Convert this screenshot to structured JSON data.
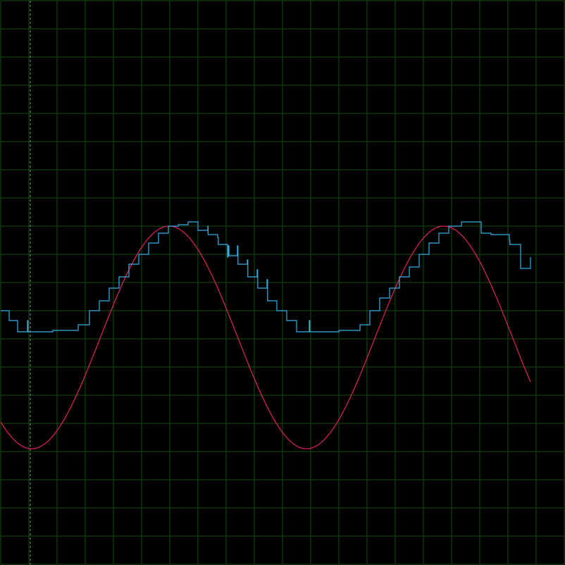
{
  "colors": {
    "background": "#000000",
    "grid": "#1d4a1d",
    "cursor": "#9a9a9a",
    "analog_signal": "#e0245e",
    "sampled_signal": "#3ab0e8"
  },
  "chart_data": {
    "type": "line",
    "title": "",
    "xlabel": "",
    "ylabel": "",
    "grid": true,
    "grid_divisions": {
      "x": 20,
      "y": 20
    },
    "xlim": [
      0,
      20
    ],
    "ylim": [
      -10,
      10
    ],
    "cursor_x": 1.05,
    "series": [
      {
        "role": "analog",
        "style": "smooth",
        "wave": {
          "offset": -1.95,
          "amplitude": 3.95,
          "period": 9.75,
          "phase_x": 1.1,
          "x_start": 0,
          "x_end": 18.8
        }
      },
      {
        "role": "sampled",
        "style": "step",
        "points": [
          [
            0,
            -1.0
          ],
          [
            0.3,
            -1.0
          ],
          [
            0.3,
            -1.35
          ],
          [
            0.6,
            -1.35
          ],
          [
            0.6,
            -1.75
          ],
          [
            0.95,
            -1.75
          ],
          [
            0.95,
            -1.35
          ],
          [
            0.97,
            -1.35
          ],
          [
            0.97,
            -1.75
          ],
          [
            1.85,
            -1.75
          ],
          [
            1.85,
            -1.7
          ],
          [
            2.75,
            -1.7
          ],
          [
            2.75,
            -1.5
          ],
          [
            3.15,
            -1.5
          ],
          [
            3.15,
            -1.35
          ],
          [
            3.15,
            -1.0
          ],
          [
            3.5,
            -1.0
          ],
          [
            3.5,
            -0.65
          ],
          [
            3.85,
            -0.65
          ],
          [
            3.85,
            -0.2
          ],
          [
            4.2,
            -0.2
          ],
          [
            4.2,
            0.2
          ],
          [
            4.55,
            0.2
          ],
          [
            4.55,
            0.65
          ],
          [
            4.9,
            0.65
          ],
          [
            4.9,
            1.0
          ],
          [
            5.25,
            1.0
          ],
          [
            5.25,
            1.4
          ],
          [
            5.6,
            1.4
          ],
          [
            5.6,
            1.75
          ],
          [
            5.95,
            1.75
          ],
          [
            5.95,
            2.0
          ],
          [
            6.3,
            2.0
          ],
          [
            6.3,
            2.05
          ],
          [
            6.65,
            2.05
          ],
          [
            6.65,
            2.15
          ],
          [
            7.0,
            2.15
          ],
          [
            7.0,
            1.85
          ],
          [
            7.35,
            1.85
          ],
          [
            7.35,
            2.0
          ],
          [
            7.36,
            2.0
          ],
          [
            7.36,
            1.7
          ],
          [
            7.7,
            1.7
          ],
          [
            7.7,
            1.6
          ],
          [
            7.72,
            1.6
          ],
          [
            7.72,
            1.35
          ],
          [
            8.05,
            1.35
          ],
          [
            8.05,
            0.9
          ],
          [
            8.07,
            0.9
          ],
          [
            8.07,
            1.3
          ],
          [
            8.1,
            1.3
          ],
          [
            8.1,
            0.95
          ],
          [
            8.4,
            0.95
          ],
          [
            8.4,
            1.3
          ],
          [
            8.42,
            1.3
          ],
          [
            8.42,
            0.65
          ],
          [
            8.75,
            0.65
          ],
          [
            8.75,
            0.8
          ],
          [
            8.77,
            0.8
          ],
          [
            8.77,
            0.2
          ],
          [
            9.1,
            0.2
          ],
          [
            9.1,
            0.45
          ],
          [
            9.12,
            0.45
          ],
          [
            9.12,
            -0.2
          ],
          [
            9.45,
            -0.2
          ],
          [
            9.45,
            0.1
          ],
          [
            9.47,
            0.1
          ],
          [
            9.47,
            -0.65
          ],
          [
            9.8,
            -0.65
          ],
          [
            9.8,
            -1.0
          ],
          [
            10.15,
            -1.0
          ],
          [
            10.15,
            -1.35
          ],
          [
            10.5,
            -1.35
          ],
          [
            10.5,
            -1.75
          ],
          [
            10.95,
            -1.75
          ],
          [
            10.95,
            -1.35
          ],
          [
            10.97,
            -1.35
          ],
          [
            10.97,
            -1.75
          ],
          [
            12.0,
            -1.75
          ],
          [
            12.0,
            -1.7
          ],
          [
            12.75,
            -1.7
          ],
          [
            12.75,
            -1.5
          ],
          [
            13.1,
            -1.5
          ],
          [
            13.1,
            -1.0
          ],
          [
            13.45,
            -1.0
          ],
          [
            13.45,
            -0.55
          ],
          [
            13.8,
            -0.55
          ],
          [
            13.8,
            -0.2
          ],
          [
            14.15,
            -0.2
          ],
          [
            14.15,
            0.2
          ],
          [
            14.5,
            0.2
          ],
          [
            14.5,
            0.55
          ],
          [
            14.85,
            0.55
          ],
          [
            14.85,
            1.0
          ],
          [
            15.2,
            1.0
          ],
          [
            15.2,
            1.4
          ],
          [
            15.55,
            1.4
          ],
          [
            15.55,
            1.75
          ],
          [
            15.9,
            1.75
          ],
          [
            15.9,
            2.0
          ],
          [
            16.35,
            2.0
          ],
          [
            16.35,
            2.15
          ],
          [
            17.05,
            2.15
          ],
          [
            17.05,
            1.75
          ],
          [
            17.4,
            1.75
          ],
          [
            17.4,
            1.7
          ],
          [
            18.05,
            1.7
          ],
          [
            18.05,
            1.5
          ],
          [
            18.07,
            1.5
          ],
          [
            18.07,
            1.35
          ],
          [
            18.45,
            1.35
          ],
          [
            18.45,
            0.5
          ],
          [
            18.8,
            0.5
          ],
          [
            18.8,
            0.9
          ]
        ]
      }
    ]
  }
}
